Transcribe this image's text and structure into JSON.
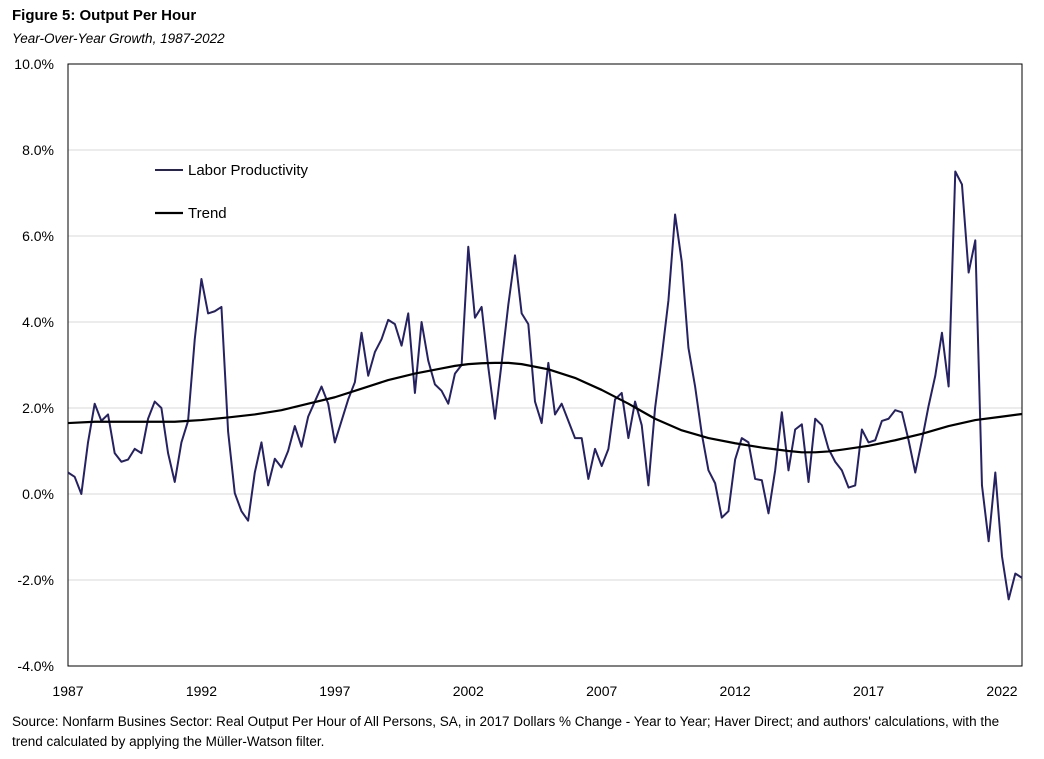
{
  "chart_data": {
    "type": "line",
    "title": "Figure 5: Output Per Hour",
    "subtitle": "Year-Over-Year Growth, 1987-2022",
    "source": "Source: Nonfarm Busines Sector: Real Output Per Hour of All Persons, SA, in 2017 Dollars % Change - Year to Year; Haver Direct; and authors' calculations, with the trend calculated by applying the Müller-Watson filter.",
    "xlabel": "",
    "ylabel": "",
    "xlim": [
      1987,
      2022.75
    ],
    "ylim": [
      -4,
      10
    ],
    "grid": true,
    "legend_position": "upper-left",
    "x_ticks": [
      1987,
      1992,
      1997,
      2002,
      2007,
      2012,
      2017,
      2022
    ],
    "x_tick_labels": [
      "1987",
      "1992",
      "1997",
      "2002",
      "2007",
      "2012",
      "2017",
      "2022"
    ],
    "y_ticks": [
      -4,
      -2,
      0,
      2,
      4,
      6,
      8,
      10
    ],
    "y_tick_labels": [
      "-4.0%",
      "-2.0%",
      "0.0%",
      "2.0%",
      "4.0%",
      "6.0%",
      "8.0%",
      "10.0%"
    ],
    "series": [
      {
        "name": "Labor Productivity",
        "color": "#262262",
        "x": [
          1987.0,
          1987.25,
          1987.5,
          1987.75,
          1988.0,
          1988.25,
          1988.5,
          1988.75,
          1989.0,
          1989.25,
          1989.5,
          1989.75,
          1990.0,
          1990.25,
          1990.5,
          1990.75,
          1991.0,
          1991.25,
          1991.5,
          1991.75,
          1992.0,
          1992.25,
          1992.5,
          1992.75,
          1993.0,
          1993.25,
          1993.5,
          1993.75,
          1994.0,
          1994.25,
          1994.5,
          1994.75,
          1995.0,
          1995.25,
          1995.5,
          1995.75,
          1996.0,
          1996.25,
          1996.5,
          1996.75,
          1997.0,
          1997.25,
          1997.5,
          1997.75,
          1998.0,
          1998.25,
          1998.5,
          1998.75,
          1999.0,
          1999.25,
          1999.5,
          1999.75,
          2000.0,
          2000.25,
          2000.5,
          2000.75,
          2001.0,
          2001.25,
          2001.5,
          2001.75,
          2002.0,
          2002.25,
          2002.5,
          2002.75,
          2003.0,
          2003.25,
          2003.5,
          2003.75,
          2004.0,
          2004.25,
          2004.5,
          2004.75,
          2005.0,
          2005.25,
          2005.5,
          2005.75,
          2006.0,
          2006.25,
          2006.5,
          2006.75,
          2007.0,
          2007.25,
          2007.5,
          2007.75,
          2008.0,
          2008.25,
          2008.5,
          2008.75,
          2009.0,
          2009.25,
          2009.5,
          2009.75,
          2010.0,
          2010.25,
          2010.5,
          2010.75,
          2011.0,
          2011.25,
          2011.5,
          2011.75,
          2012.0,
          2012.25,
          2012.5,
          2012.75,
          2013.0,
          2013.25,
          2013.5,
          2013.75,
          2014.0,
          2014.25,
          2014.5,
          2014.75,
          2015.0,
          2015.25,
          2015.5,
          2015.75,
          2016.0,
          2016.25,
          2016.5,
          2016.75,
          2017.0,
          2017.25,
          2017.5,
          2017.75,
          2018.0,
          2018.25,
          2018.5,
          2018.75,
          2019.0,
          2019.25,
          2019.5,
          2019.75,
          2020.0,
          2020.25,
          2020.5,
          2020.75,
          2021.0,
          2021.25,
          2021.5,
          2021.75,
          2022.0,
          2022.25,
          2022.5,
          2022.75
        ],
        "values": [
          0.5,
          0.4,
          0.0,
          1.2,
          2.1,
          1.7,
          1.85,
          0.95,
          0.75,
          0.8,
          1.05,
          0.95,
          1.75,
          2.15,
          2.0,
          0.95,
          0.28,
          1.2,
          1.7,
          3.6,
          5.0,
          4.2,
          4.25,
          4.35,
          1.45,
          0.02,
          -0.4,
          -0.62,
          0.5,
          1.2,
          0.2,
          0.82,
          0.62,
          1.0,
          1.58,
          1.1,
          1.8,
          2.15,
          2.5,
          2.1,
          1.2,
          1.7,
          2.2,
          2.6,
          3.75,
          2.75,
          3.3,
          3.6,
          4.05,
          3.95,
          3.45,
          4.2,
          2.35,
          4.0,
          3.1,
          2.55,
          2.4,
          2.1,
          2.8,
          3.0,
          5.75,
          4.1,
          4.35,
          2.95,
          1.75,
          3.05,
          4.4,
          5.55,
          4.2,
          3.95,
          2.15,
          1.65,
          3.05,
          1.85,
          2.1,
          1.7,
          1.3,
          1.3,
          0.35,
          1.05,
          0.65,
          1.05,
          2.2,
          2.35,
          1.3,
          2.15,
          1.6,
          0.2,
          2.0,
          3.2,
          4.5,
          6.5,
          5.4,
          3.4,
          2.5,
          1.4,
          0.55,
          0.25,
          -0.55,
          -0.4,
          0.8,
          1.3,
          1.2,
          0.35,
          0.32,
          -0.45,
          0.55,
          1.9,
          0.55,
          1.5,
          1.62,
          0.28,
          1.75,
          1.6,
          1.05,
          0.75,
          0.55,
          0.15,
          0.2,
          1.5,
          1.2,
          1.25,
          1.7,
          1.75,
          1.95,
          1.9,
          1.25,
          0.5,
          1.25,
          2.05,
          2.75,
          3.75,
          2.5,
          7.5,
          7.2,
          5.15,
          5.9,
          0.2,
          -1.1,
          0.5,
          -1.45,
          -2.45,
          -1.85,
          -1.95
        ]
      },
      {
        "name": "Trend",
        "color": "#000000",
        "x": [
          1987.0,
          1988.0,
          1989.0,
          1990.0,
          1991.0,
          1991.5,
          1992.0,
          1993.0,
          1994.0,
          1995.0,
          1996.0,
          1997.0,
          1998.0,
          1999.0,
          2000.0,
          2001.0,
          2001.5,
          2002.0,
          2002.5,
          2003.0,
          2003.5,
          2004.0,
          2005.0,
          2006.0,
          2007.0,
          2008.0,
          2009.0,
          2010.0,
          2011.0,
          2012.0,
          2013.0,
          2014.0,
          2014.5,
          2015.0,
          2015.5,
          2016.0,
          2017.0,
          2018.0,
          2019.0,
          2020.0,
          2021.0,
          2022.0,
          2022.75
        ],
        "values": [
          1.65,
          1.68,
          1.68,
          1.68,
          1.68,
          1.7,
          1.72,
          1.78,
          1.85,
          1.95,
          2.1,
          2.25,
          2.45,
          2.65,
          2.8,
          2.92,
          2.98,
          3.02,
          3.04,
          3.05,
          3.05,
          3.02,
          2.9,
          2.7,
          2.42,
          2.1,
          1.75,
          1.48,
          1.3,
          1.18,
          1.08,
          1.0,
          0.97,
          0.97,
          0.99,
          1.03,
          1.12,
          1.25,
          1.4,
          1.58,
          1.72,
          1.8,
          1.86
        ]
      }
    ]
  }
}
